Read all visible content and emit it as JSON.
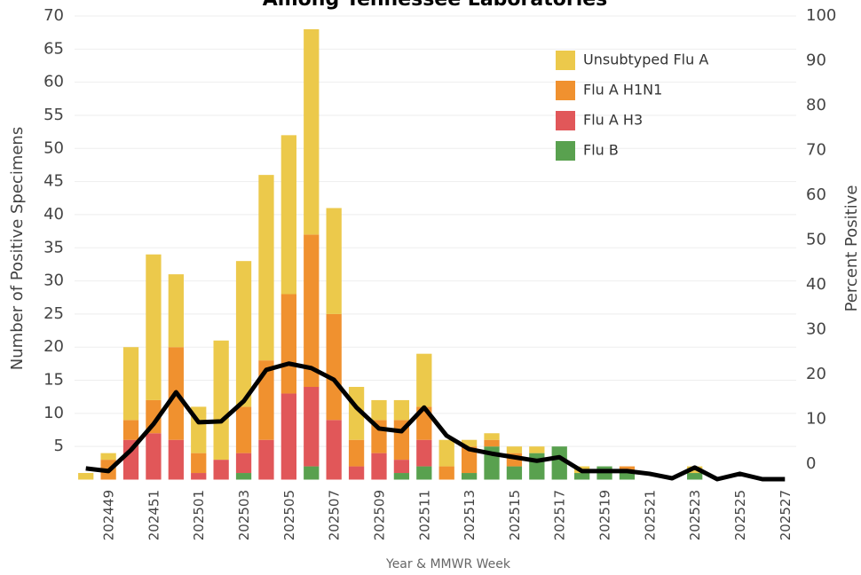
{
  "chart_data": {
    "type": "bar",
    "title": "Among Tennessee Laboratories",
    "x_label": "Year & MMWR Week",
    "y_label": "Number of Positive Specimens",
    "y2_label": "Percent Positive",
    "categories": [
      null,
      "202449",
      null,
      "202451",
      null,
      "202501",
      null,
      "202503",
      null,
      "202505",
      null,
      "202507",
      null,
      "202509",
      null,
      "202511",
      null,
      "202513",
      null,
      "202515",
      null,
      "202517",
      null,
      "202519",
      null,
      "202521",
      null,
      "202523",
      null,
      "202525",
      null,
      "202527"
    ],
    "series": [
      {
        "name": "Unsubtyped Flu A",
        "color": "#ecc94b",
        "values": [
          1,
          1,
          11,
          22,
          11,
          7,
          18,
          22,
          28,
          24,
          31,
          16,
          8,
          3,
          3,
          8,
          4,
          1,
          1,
          1,
          1,
          0,
          1,
          0,
          0,
          0,
          0,
          1,
          0,
          0,
          0,
          0
        ]
      },
      {
        "name": "Flu A H1N1",
        "color": "#f0912f",
        "values": [
          0,
          3,
          3,
          5,
          14,
          3,
          0,
          7,
          12,
          15,
          23,
          16,
          4,
          5,
          6,
          5,
          2,
          4,
          1,
          2,
          0,
          0,
          0,
          0,
          1,
          0,
          0,
          0,
          0,
          0,
          0,
          0
        ]
      },
      {
        "name": "Flu A H3",
        "color": "#e15759",
        "values": [
          0,
          0,
          6,
          7,
          6,
          1,
          3,
          3,
          6,
          13,
          12,
          9,
          2,
          4,
          2,
          4,
          0,
          0,
          0,
          0,
          0,
          0,
          0,
          0,
          0,
          0,
          0,
          0,
          0,
          0,
          0,
          0
        ]
      },
      {
        "name": "Flu B",
        "color": "#59a14f",
        "values": [
          0,
          0,
          0,
          0,
          0,
          0,
          0,
          1,
          0,
          0,
          2,
          0,
          0,
          0,
          1,
          2,
          0,
          1,
          5,
          2,
          4,
          5,
          1,
          2,
          1,
          0,
          0,
          1,
          0,
          0,
          0,
          0
        ]
      },
      {
        "name": "Percent Positive",
        "type": "line",
        "axis": "y2",
        "color": "#000000",
        "values": [
          -1.0,
          -1.6,
          3.1,
          8.9,
          16.0,
          9.3,
          9.5,
          14.0,
          21.0,
          22.4,
          21.4,
          18.8,
          12.6,
          7.9,
          7.3,
          12.6,
          6.3,
          3.3,
          2.3,
          1.5,
          0.7,
          1.5,
          -1.6,
          -1.6,
          -1.6,
          -2.2,
          -3.2,
          -0.8,
          -3.4,
          -2.2,
          -3.4,
          -3.4
        ]
      }
    ],
    "ylim": [
      0,
      70
    ],
    "yticks": [
      5,
      10,
      15,
      20,
      25,
      30,
      35,
      40,
      45,
      50,
      55,
      60,
      65,
      70
    ],
    "y2lim": [
      -3.5,
      100
    ],
    "y2ticks": [
      0,
      10,
      20,
      30,
      40,
      50,
      60,
      70,
      80,
      90,
      100
    ],
    "grid": true,
    "stacked": true,
    "legend": "top-right"
  }
}
